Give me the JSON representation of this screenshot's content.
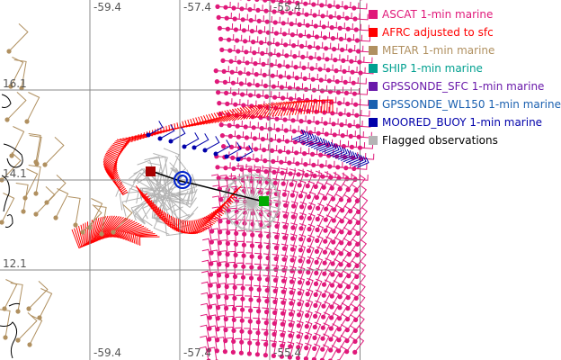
{
  "map": {
    "lon_labels_top": [
      "-59.4",
      "-57.4",
      "-55.4"
    ],
    "lon_labels_bottom": [
      "-59.4",
      "-57.4",
      "-55.4"
    ],
    "lat_labels": [
      "16.1",
      "14.1",
      "12.1"
    ],
    "colors": {
      "grid": "#888888",
      "coast": "#000000",
      "track": "#000000",
      "start_marker": "#aa0000",
      "end_marker": "#00aa00",
      "center_marker": "#0000cc"
    }
  },
  "legend": {
    "items": [
      {
        "label": "ASCAT 1-min marine",
        "color": "#e0197a"
      },
      {
        "label": "AFRC adjusted to sfc",
        "color": "#ff0000"
      },
      {
        "label": "METAR 1-min marine",
        "color": "#b09060"
      },
      {
        "label": "SHIP 1-min marine",
        "color": "#00a090"
      },
      {
        "label": "GPSSONDE_SFC 1-min marine",
        "color": "#6a1aaa"
      },
      {
        "label": "GPSSONDE_WL150 1-min marine",
        "color": "#1a60b0"
      },
      {
        "label": "MOORED_BUOY 1-min marine",
        "color": "#0000aa"
      },
      {
        "label": "Flagged observations",
        "color": "#b4b4b4",
        "text_color": "#000000"
      }
    ]
  }
}
